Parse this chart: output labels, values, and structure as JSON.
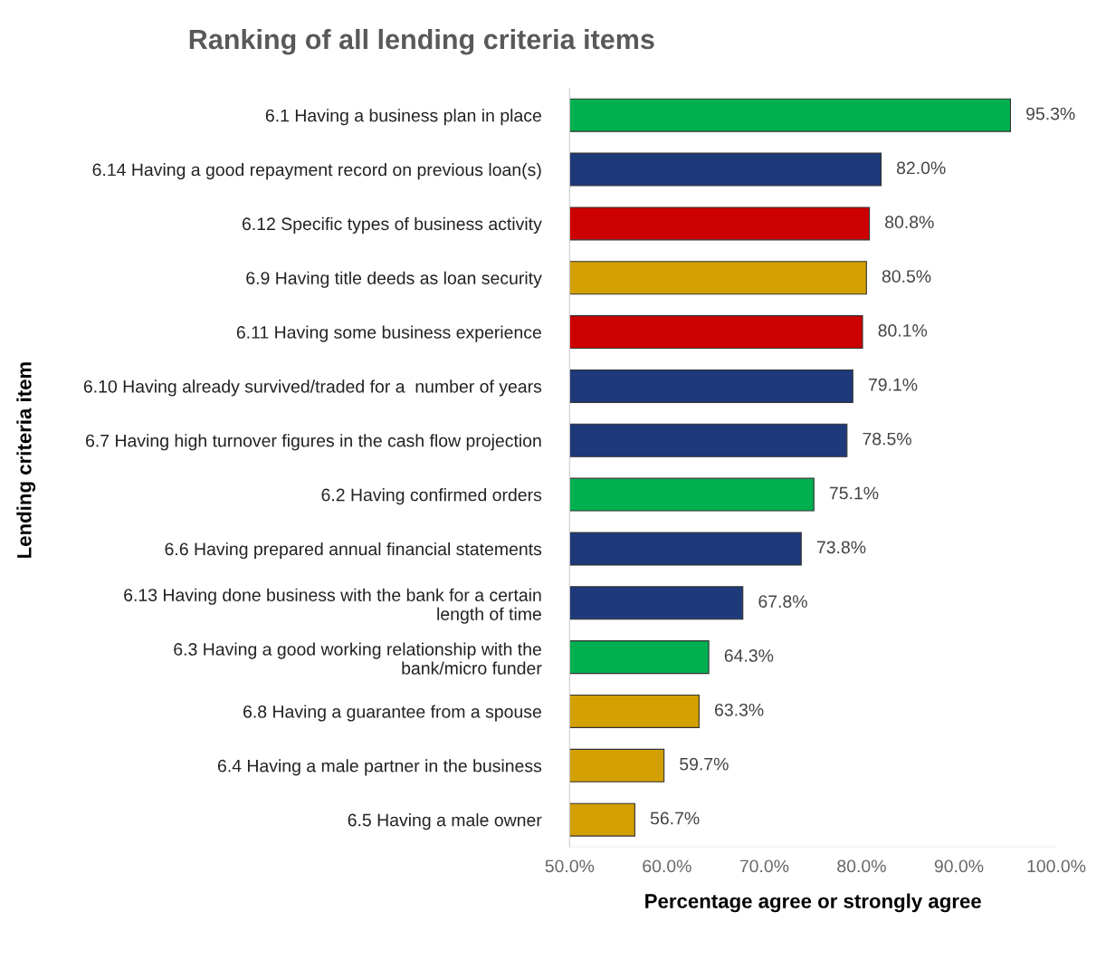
{
  "chart_data": {
    "type": "bar",
    "orientation": "horizontal",
    "title": "Ranking of all lending criteria items",
    "xlabel": "Percentage agree or strongly agree",
    "ylabel": "Lending criteria item",
    "categories": [
      "6.1 Having a business plan in place",
      "6.14 Having a good repayment record on previous loan(s)",
      "6.12 Specific types of business activity",
      "6.9 Having title deeds as loan security",
      "6.11 Having some business experience",
      "6.10 Having already survived/traded for a  number of years",
      "6.7 Having high turnover figures in the cash flow projection",
      "6.2 Having confirmed orders",
      "6.6 Having prepared annual financial statements",
      "6.13 Having done business with the bank for a certain\nlength of time",
      "6.3 Having a good working relationship with the\nbank/micro funder",
      "6.8 Having a guarantee from a spouse",
      "6.4 Having a male partner in the business",
      "6.5 Having a male owner"
    ],
    "values": [
      95.3,
      82.0,
      80.8,
      80.5,
      80.1,
      79.1,
      78.5,
      75.1,
      73.8,
      67.8,
      64.3,
      63.3,
      59.7,
      56.7
    ],
    "value_labels": [
      "95.3%",
      "82.0%",
      "80.8%",
      "80.5%",
      "80.1%",
      "79.1%",
      "78.5%",
      "75.1%",
      "73.8%",
      "67.8%",
      "64.3%",
      "63.3%",
      "59.7%",
      "56.7%"
    ],
    "colors": [
      "#00b050",
      "#1f3a7a",
      "#cc0000",
      "#d4a000",
      "#cc0000",
      "#1f3a7a",
      "#1f3a7a",
      "#00b050",
      "#1f3a7a",
      "#1f3a7a",
      "#00b050",
      "#d4a000",
      "#d4a000",
      "#d4a000"
    ],
    "xlim": [
      50,
      100
    ],
    "xticks": [
      {
        "value": 50,
        "label": "50.0%"
      },
      {
        "value": 60,
        "label": "60.0%"
      },
      {
        "value": 70,
        "label": "70.0%"
      },
      {
        "value": 80,
        "label": "80.0%"
      },
      {
        "value": 90,
        "label": "90.0%"
      },
      {
        "value": 100,
        "label": "100.0%"
      }
    ],
    "grid": false,
    "legend": false
  }
}
